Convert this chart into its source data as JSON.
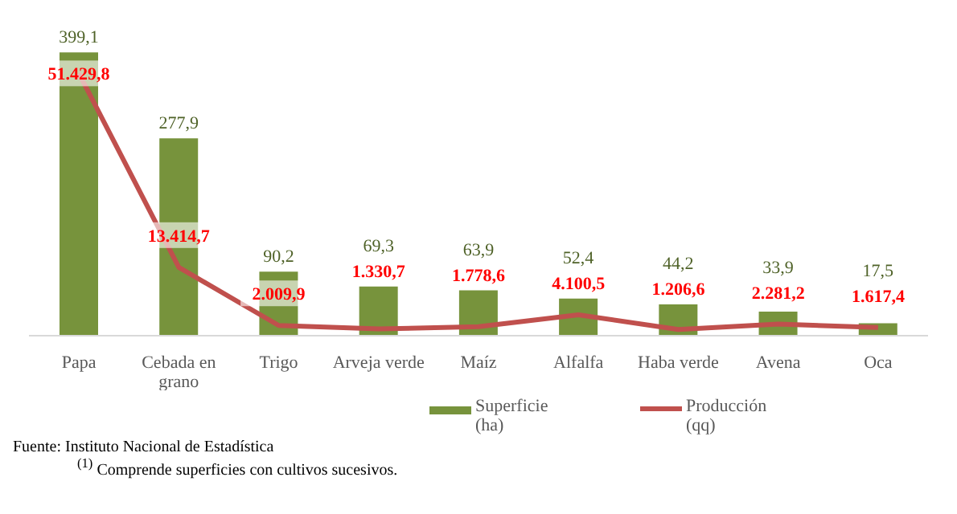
{
  "chart_data": {
    "type": "bar",
    "categories": [
      "Papa",
      "Cebada en grano",
      "Trigo",
      "Arveja verde",
      "Maíz",
      "Alfalfa",
      "Haba verde",
      "Avena",
      "Oca"
    ],
    "series": [
      {
        "name": "Superficie (ha)",
        "color": "#77933c",
        "values": [
          399.1,
          277.9,
          90.2,
          69.3,
          63.9,
          52.4,
          44.2,
          33.9,
          17.5
        ],
        "value_labels": [
          "399,1",
          "277,9",
          "90,2",
          "69,3",
          "63,9",
          "52,4",
          "44,2",
          "33,9",
          "17,5"
        ]
      },
      {
        "name": "Producción (qq)",
        "type": "line",
        "axis": "y2",
        "color": "#c0504d",
        "values": [
          51429.8,
          13414.7,
          2009.9,
          1330.7,
          1778.6,
          4100.5,
          1206.6,
          2281.2,
          1617.4
        ],
        "value_labels": [
          "51.429,8",
          "13.414,7",
          "2.009,9",
          "1.330,7",
          "1.778,6",
          "4.100,5",
          "1.206,6",
          "2.281,2",
          "1.617,4"
        ]
      }
    ],
    "data_labels": true,
    "legend": "bottom",
    "tick_labels": "x",
    "marker": "none",
    "annotations": [
      "Fuente: Instituto Nacional de Estadística",
      "$^{(1)}$ Comprende superficies con cultivos sucesivos."
    ]
  }
}
